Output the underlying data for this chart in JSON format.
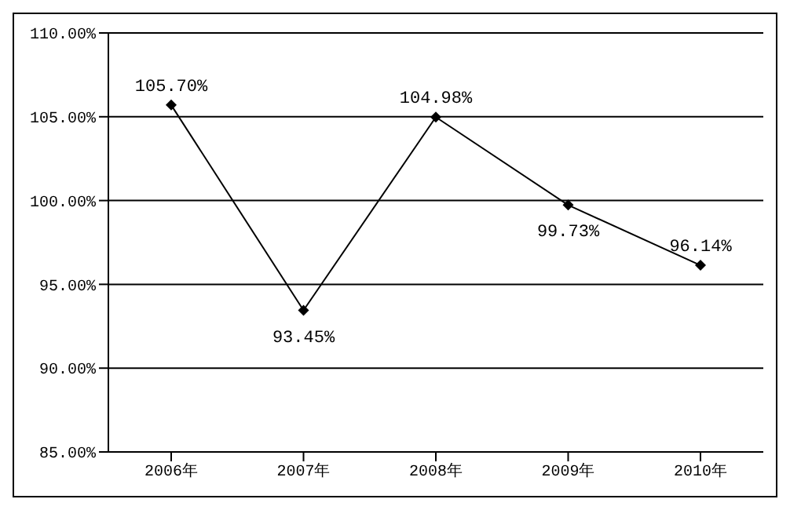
{
  "chart_data": {
    "type": "line",
    "categories": [
      "2006年",
      "2007年",
      "2008年",
      "2009年",
      "2010年"
    ],
    "series": [
      {
        "color": "#000000",
        "values": [
          105.7,
          93.45,
          104.98,
          99.73,
          96.14
        ],
        "value_labels": [
          "105.70%",
          "93.45%",
          "104.98%",
          "99.73%",
          "96.14%"
        ]
      }
    ],
    "ylim": [
      85,
      110
    ],
    "yticks": [
      {
        "value": 85,
        "label": "85.00%"
      },
      {
        "value": 90,
        "label": "90.00%"
      },
      {
        "value": 95,
        "label": "95.00%"
      },
      {
        "value": 100,
        "label": "100.00%"
      },
      {
        "value": 105,
        "label": "105.00%"
      },
      {
        "value": 110,
        "label": "110.00%"
      }
    ],
    "grid": "y",
    "marker": "diamond",
    "line_style": "solid",
    "legend": false
  }
}
